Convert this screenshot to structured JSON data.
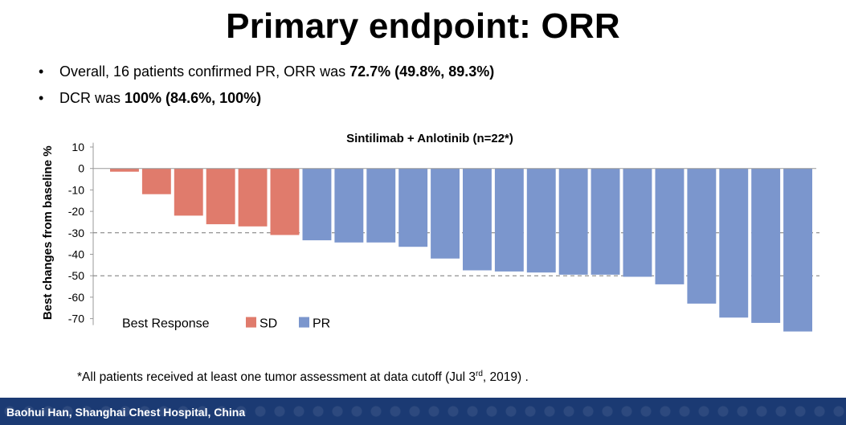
{
  "slide": {
    "title": "Primary endpoint: ORR",
    "bullets": [
      {
        "plain": "Overall, 16 patients confirmed PR, ORR was ",
        "bold": "72.7% (49.8%, 89.3%)"
      },
      {
        "plain": "DCR was ",
        "bold": "100% (84.6%, 100%)"
      }
    ],
    "bullet_symbol": "•",
    "footnote_pre": "*All patients received at least one tumor assessment at data cutoff (Jul 3",
    "footnote_sup": "rd",
    "footnote_post": ", 2019) .",
    "footer": "Baohui Han, Shanghai Chest Hospital, China"
  },
  "chart_data": {
    "type": "bar",
    "title": "Sintilimab + Anlotinib (n=22*)",
    "ylabel": "Best changes from baseline %",
    "xlabel": "",
    "ylim": [
      -78,
      12
    ],
    "yticks": [
      10,
      0,
      -10,
      -20,
      -30,
      -40,
      -50,
      -60,
      -70
    ],
    "reference_lines": [
      -30,
      -50
    ],
    "legend_title": "Best Response",
    "legend": [
      {
        "label": "SD",
        "color": "#e07b6c"
      },
      {
        "label": "PR",
        "color": "#7b96cd"
      }
    ],
    "values": [
      -1.5,
      -12,
      -22,
      -26,
      -27,
      -31,
      -33.5,
      -34.5,
      -34.5,
      -36.5,
      -42,
      -47.5,
      -48,
      -48.5,
      -49.5,
      -49.5,
      -50.5,
      -54,
      -63,
      -69.5,
      -72,
      -76
    ],
    "response": [
      "SD",
      "SD",
      "SD",
      "SD",
      "SD",
      "SD",
      "PR",
      "PR",
      "PR",
      "PR",
      "PR",
      "PR",
      "PR",
      "PR",
      "PR",
      "PR",
      "PR",
      "PR",
      "PR",
      "PR",
      "PR",
      "PR"
    ]
  }
}
